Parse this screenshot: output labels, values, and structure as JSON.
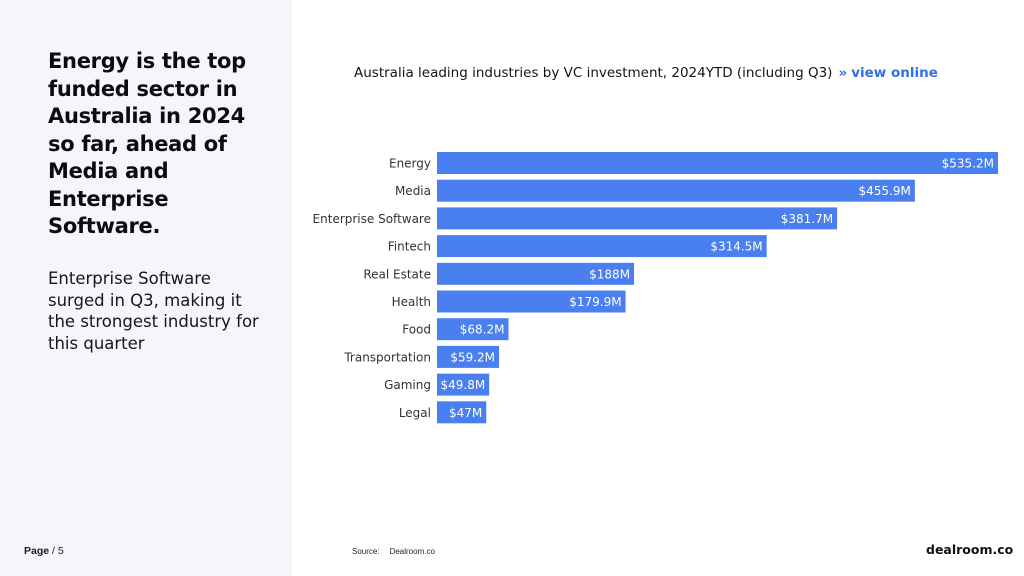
{
  "sidebar": {
    "headline": "Energy is the top funded sector in Australia in 2024 so far, ahead of Media and Enterprise Software.",
    "subtext": "Enterprise Software surged in Q3, making it the strongest industry for this quarter",
    "page_word": "Page",
    "page_sep": " / ",
    "page_number": "5"
  },
  "header": {
    "chart_title": "Australia leading industries by VC investment,  2024YTD (including Q3)",
    "link_arrow": "»",
    "link_label": "view online"
  },
  "footer": {
    "source_label": "Source:",
    "source_value": "Dealroom.co",
    "logo": "dealroom.co"
  },
  "colors": {
    "bar": "#4a7ff0",
    "bar_label": "#ffffff",
    "accent": "#2f6fe8"
  },
  "chart_data": {
    "type": "bar",
    "orientation": "horizontal",
    "title": "Australia leading industries by VC investment,  2024YTD (including Q3)",
    "xlabel": "",
    "ylabel": "",
    "unit": "$M",
    "categories": [
      "Energy",
      "Media",
      "Enterprise Software",
      "Fintech",
      "Real Estate",
      "Health",
      "Food",
      "Transportation",
      "Gaming",
      "Legal"
    ],
    "values": [
      535.2,
      455.9,
      381.7,
      314.5,
      188,
      179.9,
      68.2,
      59.2,
      49.8,
      47
    ],
    "value_labels": [
      "$535.2M",
      "$455.9M",
      "$381.7M",
      "$314.5M",
      "$188M",
      "$179.9M",
      "$68.2M",
      "$59.2M",
      "$49.8M",
      "$47M"
    ],
    "xlim": [
      0,
      535.2
    ],
    "grid": false,
    "legend": "none"
  }
}
